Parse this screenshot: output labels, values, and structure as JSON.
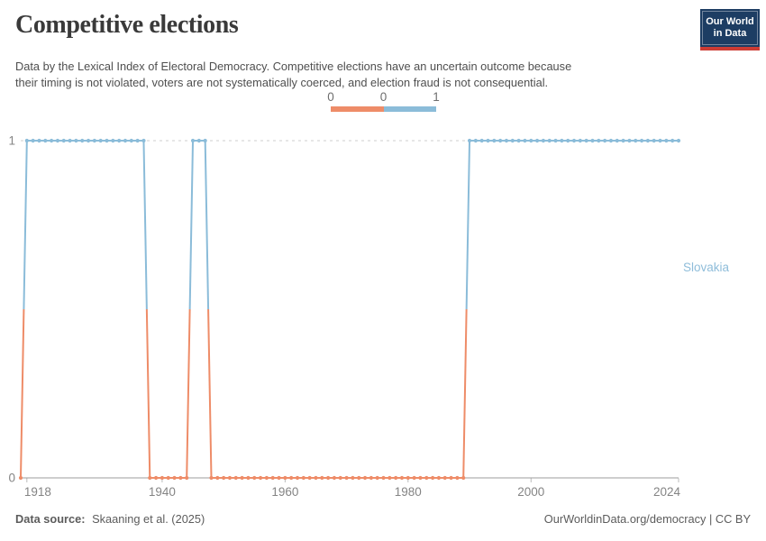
{
  "header": {
    "title": "Competitive elections",
    "subtitle": "Data by the Lexical Index of Electoral Democracy. Competitive elections have an uncertain outcome because their timing is not violated, voters are not systematically coerced, and election fraud is not consequential."
  },
  "logo": {
    "line1": "Our World",
    "line2": "in Data",
    "bg_color": "#1d3d63",
    "accent_color": "#cd3c34"
  },
  "legend": {
    "labels": [
      "0",
      "0",
      "1"
    ],
    "colors": [
      "#ee8c68",
      "#8bbcd9"
    ]
  },
  "chart_data": {
    "type": "line",
    "title": "Competitive elections",
    "xlabel": "",
    "ylabel": "",
    "xlim": [
      1917,
      2024
    ],
    "ylim": [
      0,
      1
    ],
    "xticks": [
      1918,
      1940,
      1960,
      1980,
      2000,
      2024
    ],
    "yticks": [
      0,
      1
    ],
    "grid": "dashed horizontal gridline at y=1, solid axis line at y=0",
    "legend_position": "top-center",
    "marker": "circle at every yearly data point",
    "value_colors": {
      "0": "#ee8c68",
      "1": "#8bbcd9"
    },
    "series": [
      {
        "name": "Slovakia",
        "label_color": "#8fbdda",
        "steps": [
          {
            "from": 1917,
            "to": 1917,
            "value": 0
          },
          {
            "from": 1918,
            "to": 1937,
            "value": 1
          },
          {
            "from": 1938,
            "to": 1944,
            "value": 0
          },
          {
            "from": 1945,
            "to": 1947,
            "value": 1
          },
          {
            "from": 1948,
            "to": 1989,
            "value": 0
          },
          {
            "from": 1990,
            "to": 2024,
            "value": 1
          }
        ]
      }
    ]
  },
  "footer": {
    "source_label": "Data source:",
    "source_value": "Skaaning et al. (2025)",
    "rights": "OurWorldinData.org/democracy | CC BY"
  }
}
